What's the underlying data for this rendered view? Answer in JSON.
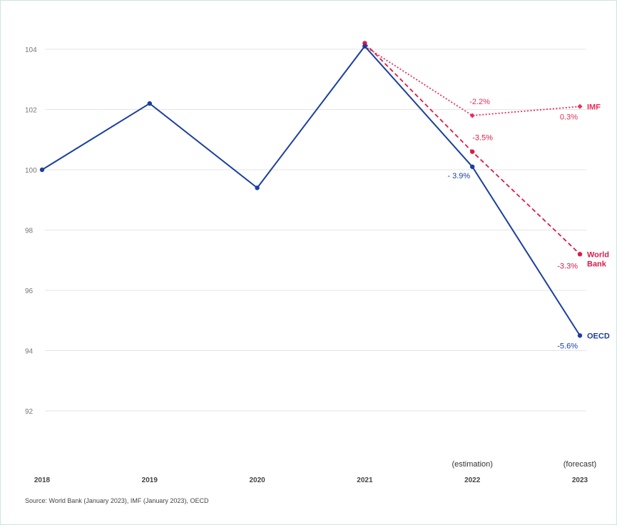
{
  "chart_data": {
    "type": "line",
    "categories": [
      "2018",
      "2019",
      "2020",
      "2021",
      "2022",
      "2023"
    ],
    "category_notes": [
      "",
      "",
      "",
      "",
      "(estimation)",
      "(forecast)"
    ],
    "ylim": [
      90.5,
      105.5
    ],
    "yticks": [
      92,
      94,
      96,
      98,
      100,
      102,
      104
    ],
    "grid": true,
    "series": [
      {
        "name": "OECD",
        "color": "#1a3fa0",
        "style": "solid",
        "values": [
          100,
          102.2,
          99.4,
          104.1,
          100.1,
          94.5
        ],
        "point_labels": [
          "",
          "",
          "",
          "",
          "- 3.9%",
          "-5.6%"
        ]
      },
      {
        "name": "World Bank",
        "color": "#d81b4a",
        "style": "dashed",
        "values": [
          null,
          null,
          null,
          104.2,
          100.6,
          97.2
        ],
        "point_labels": [
          "",
          "",
          "",
          "",
          "-3.5%",
          "-3.3%"
        ]
      },
      {
        "name": "IMF",
        "color": "#ee2b57",
        "style": "dotted",
        "values": [
          null,
          null,
          null,
          104.1,
          101.8,
          102.1
        ],
        "point_labels": [
          "",
          "",
          "",
          "",
          "-2.2%",
          "0.3%"
        ]
      }
    ],
    "source": "Source: World Bank (January 2023), IMF (January 2023), OECD"
  }
}
